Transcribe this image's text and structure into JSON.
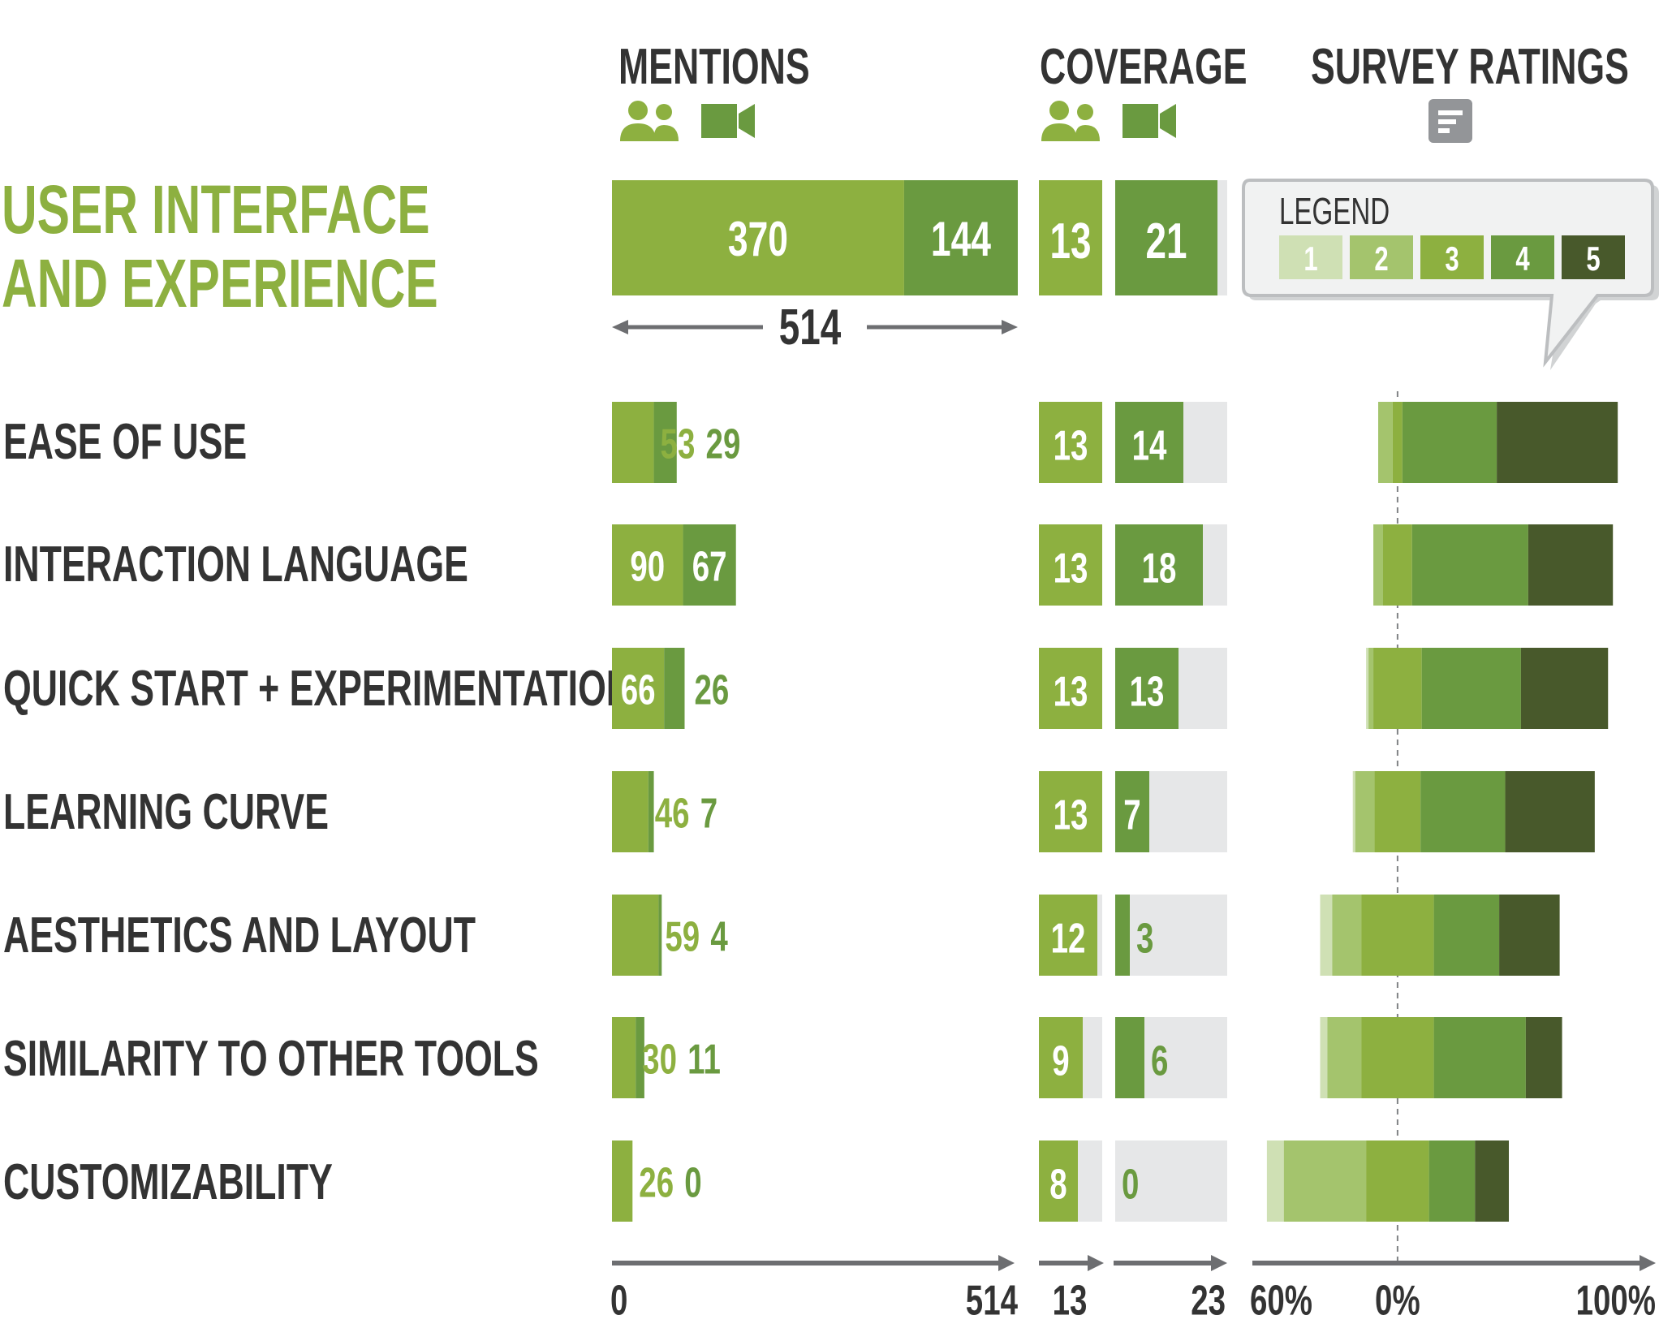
{
  "columns": {
    "mentions": "MENTIONS",
    "coverage": "COVERAGE",
    "survey": "SURVEY RATINGS"
  },
  "section_title": {
    "line1": "USER INTERFACE",
    "line2": "AND EXPERIENCE"
  },
  "icons": {
    "users": "users-icon",
    "video": "video-camera-icon",
    "survey": "survey-form-icon"
  },
  "colors": {
    "users": "#8db040",
    "video": "#6a9a40",
    "track": "#e6e7e8",
    "title_green": "#8db040",
    "text": "#333333",
    "axis": "#6d6e71",
    "rating_1": "#cfe0b4",
    "rating_2": "#a4c46d",
    "rating_3": "#8db040",
    "rating_4": "#6a9a40",
    "rating_5": "#48592b"
  },
  "legend": {
    "title": "LEGEND",
    "items": [
      "1",
      "2",
      "3",
      "4",
      "5"
    ]
  },
  "chart_data": {
    "type": "bar",
    "summary": {
      "mentions_users": 370,
      "mentions_video": 144,
      "mentions_total": 514,
      "coverage_users": 13,
      "coverage_video": 21
    },
    "categories": [
      "EASE OF USE",
      "INTERACTION LANGUAGE",
      "QUICK START + EXPERIMENTATION",
      "LEARNING CURVE",
      "AESTHETICS AND LAYOUT",
      "SIMILARITY TO OTHER TOOLS",
      "CUSTOMIZABILITY"
    ],
    "mentions_users": [
      53,
      90,
      66,
      46,
      59,
      30,
      26
    ],
    "mentions_video": [
      29,
      67,
      26,
      7,
      4,
      11,
      0
    ],
    "coverage_users": [
      13,
      13,
      13,
      13,
      12,
      9,
      8
    ],
    "coverage_video": [
      14,
      18,
      13,
      7,
      3,
      6,
      0
    ],
    "survey_ratings_pct": [
      [
        0,
        6,
        4,
        39,
        50
      ],
      [
        0,
        4,
        12,
        48,
        35
      ],
      [
        1,
        2,
        20,
        41,
        36
      ],
      [
        1,
        8,
        19,
        35,
        37
      ],
      [
        5,
        12,
        30,
        27,
        25
      ],
      [
        3,
        14,
        30,
        38,
        15
      ],
      [
        7,
        34,
        26,
        19,
        14
      ]
    ],
    "mentions_axis": {
      "min": 0,
      "max": 514
    },
    "coverage_users_axis": {
      "max": 13
    },
    "coverage_video_axis": {
      "max": 23
    },
    "survey_axis": {
      "min_label": "60%",
      "zero_label": "0%",
      "max_label": "100%",
      "min": -60,
      "max": 100
    },
    "axis_labels": {
      "mentions_min": "0",
      "mentions_max": "514",
      "coverage_users_max": "13",
      "coverage_video_max": "23",
      "survey_min": "60%",
      "survey_zero": "0%",
      "survey_max": "100%"
    }
  }
}
